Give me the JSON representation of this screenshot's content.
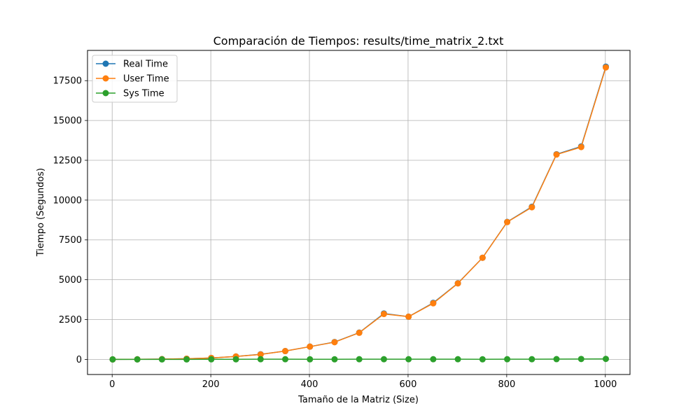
{
  "chart_data": {
    "type": "line",
    "title": "Comparación de Tiempos: results/time_matrix_2.txt",
    "xlabel": "Tamaño de la Matriz (Size)",
    "ylabel": "Tiempo (Segundos)",
    "xlim": [
      -50,
      1050
    ],
    "ylim": [
      -950,
      19400
    ],
    "xticks": [
      0,
      200,
      400,
      600,
      800,
      1000
    ],
    "xtick_labels": [
      "0",
      "200",
      "400",
      "600",
      "800",
      "1000"
    ],
    "yticks": [
      0,
      2500,
      5000,
      7500,
      10000,
      12500,
      15000,
      17500
    ],
    "ytick_labels": [
      "0",
      "2500",
      "5000",
      "7500",
      "10000",
      "12500",
      "15000",
      "17500"
    ],
    "grid": true,
    "legend_position": "upper-left",
    "x": [
      1,
      51,
      101,
      151,
      201,
      251,
      301,
      351,
      401,
      451,
      501,
      551,
      601,
      651,
      701,
      751,
      801,
      851,
      901,
      951,
      1001
    ],
    "series": [
      {
        "name": "Real Time",
        "color": "#1f77b4",
        "values": [
          0,
          5,
          15,
          40,
          90,
          180,
          320,
          520,
          800,
          1090,
          1680,
          2880,
          2680,
          3550,
          4780,
          6380,
          8630,
          9580,
          12880,
          13370,
          18380
        ]
      },
      {
        "name": "User Time",
        "color": "#ff7f0e",
        "values": [
          0,
          5,
          15,
          40,
          90,
          180,
          310,
          520,
          800,
          1080,
          1670,
          2850,
          2680,
          3520,
          4770,
          6380,
          8620,
          9550,
          12860,
          13330,
          18330
        ]
      },
      {
        "name": "Sys Time",
        "color": "#2ca02c",
        "values": [
          0,
          0,
          0,
          0,
          5,
          5,
          10,
          10,
          5,
          5,
          10,
          10,
          10,
          10,
          10,
          5,
          10,
          10,
          15,
          25,
          30
        ]
      }
    ]
  }
}
